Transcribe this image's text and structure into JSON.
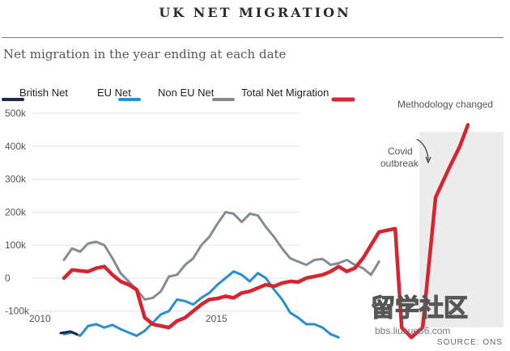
{
  "header": {
    "title": "UK NET MIGRATION",
    "subtitle": "Net migration in the year ending at each date"
  },
  "colors": {
    "british": "#1b2a4a",
    "eu": "#2a8fd0",
    "non_eu": "#858b92",
    "total": "#d9232f",
    "shade": "#ececec"
  },
  "chart_data": {
    "type": "line",
    "title": "UK NET MIGRATION",
    "subtitle": "Net migration in the year ending at each date",
    "ylim": [
      -150,
      500
    ],
    "yticks": [
      500,
      400,
      300,
      200,
      100,
      0,
      -100
    ],
    "ytick_labels": [
      "500k",
      "400k",
      "300k",
      "200k",
      "100k",
      "0",
      "-100k"
    ],
    "xticks": [
      2010,
      2015
    ],
    "xlim": [
      2009.9,
      2023.0
    ],
    "legend_position": "top",
    "series": [
      {
        "name": "British Net",
        "key": "british",
        "x": [
          2009.9,
          2010.2,
          2010.4
        ],
        "values": [
          -167,
          -162,
          -170
        ]
      },
      {
        "name": "EU Net",
        "key": "eu",
        "x": [
          2010.0,
          2010.25,
          2010.5,
          2010.75,
          2011.0,
          2011.25,
          2011.5,
          2011.75,
          2012.0,
          2012.25,
          2012.5,
          2012.75,
          2013.0,
          2013.25,
          2013.5,
          2013.75,
          2014.0,
          2014.25,
          2014.5,
          2014.75,
          2015.0,
          2015.25,
          2015.5,
          2015.75,
          2016.0,
          2016.25,
          2016.5,
          2016.75,
          2017.0,
          2017.25,
          2017.5,
          2017.75,
          2018.0,
          2018.25,
          2018.5
        ],
        "values": [
          -170,
          -165,
          -175,
          -145,
          -140,
          -150,
          -142,
          -155,
          -165,
          -175,
          -160,
          -135,
          -110,
          -100,
          -65,
          -70,
          -80,
          -60,
          -45,
          -20,
          0,
          20,
          10,
          -10,
          15,
          0,
          -35,
          -65,
          -105,
          -120,
          -140,
          -140,
          -150,
          -170,
          -180
        ]
      },
      {
        "name": "Non EU Net",
        "key": "non_eu",
        "x": [
          2010.0,
          2010.25,
          2010.5,
          2010.75,
          2011.0,
          2011.25,
          2011.5,
          2011.75,
          2012.0,
          2012.25,
          2012.5,
          2012.75,
          2013.0,
          2013.25,
          2013.5,
          2013.75,
          2014.0,
          2014.25,
          2014.5,
          2014.75,
          2015.0,
          2015.25,
          2015.5,
          2015.75,
          2016.0,
          2016.25,
          2016.5,
          2016.75,
          2017.0,
          2017.25,
          2017.5,
          2017.75,
          2018.0,
          2018.25,
          2018.5,
          2018.75,
          2019.0,
          2019.25,
          2019.5,
          2019.75
        ],
        "values": [
          55,
          90,
          80,
          105,
          110,
          100,
          60,
          15,
          -10,
          -35,
          -65,
          -60,
          -40,
          5,
          10,
          40,
          60,
          100,
          125,
          165,
          200,
          195,
          170,
          195,
          190,
          155,
          125,
          90,
          60,
          50,
          40,
          55,
          58,
          40,
          45,
          55,
          40,
          30,
          10,
          50
        ]
      },
      {
        "name": "Total Net Migration",
        "key": "total",
        "x": [
          2010.0,
          2010.25,
          2010.5,
          2010.75,
          2011.0,
          2011.25,
          2011.5,
          2011.75,
          2012.0,
          2012.25,
          2012.5,
          2012.75,
          2013.0,
          2013.25,
          2013.5,
          2013.75,
          2014.0,
          2014.25,
          2014.5,
          2014.75,
          2015.0,
          2015.25,
          2015.5,
          2015.75,
          2016.0,
          2016.25,
          2016.5,
          2016.75,
          2017.0,
          2017.25,
          2017.5,
          2017.75,
          2018.0,
          2018.25,
          2018.5,
          2018.75,
          2019.0,
          2019.25,
          2019.5,
          2019.75,
          2020.25,
          2020.45,
          2020.75,
          2021.1,
          2021.5,
          2021.9,
          2022.25,
          2022.5
        ],
        "values": [
          0,
          25,
          22,
          20,
          30,
          35,
          10,
          -10,
          -20,
          -35,
          -120,
          -140,
          -145,
          -150,
          -130,
          -120,
          -100,
          -80,
          -65,
          -62,
          -55,
          -60,
          -45,
          -40,
          -30,
          -20,
          -25,
          -15,
          -10,
          -12,
          0,
          5,
          10,
          20,
          35,
          20,
          30,
          60,
          100,
          140,
          150,
          -150,
          -180,
          -150,
          245,
          330,
          400,
          465
        ]
      }
    ],
    "annotations": [
      {
        "key": "methodology",
        "text": "Methodology changed"
      },
      {
        "key": "covid",
        "lines": [
          "Covid",
          "outbreak"
        ]
      }
    ],
    "shaded_region": {
      "from": 2021.0,
      "to": 2023.0
    }
  },
  "legend": {
    "items": [
      {
        "key": "british",
        "label": "British Net"
      },
      {
        "key": "eu",
        "label": "EU Net"
      },
      {
        "key": "non_eu",
        "label": "Non EU Net"
      },
      {
        "key": "total",
        "label": "Total Net Migration"
      }
    ]
  },
  "source": "SOURCE: ONS",
  "watermark": {
    "main": "留学社区",
    "url": "bbs.liuxue86.com"
  }
}
